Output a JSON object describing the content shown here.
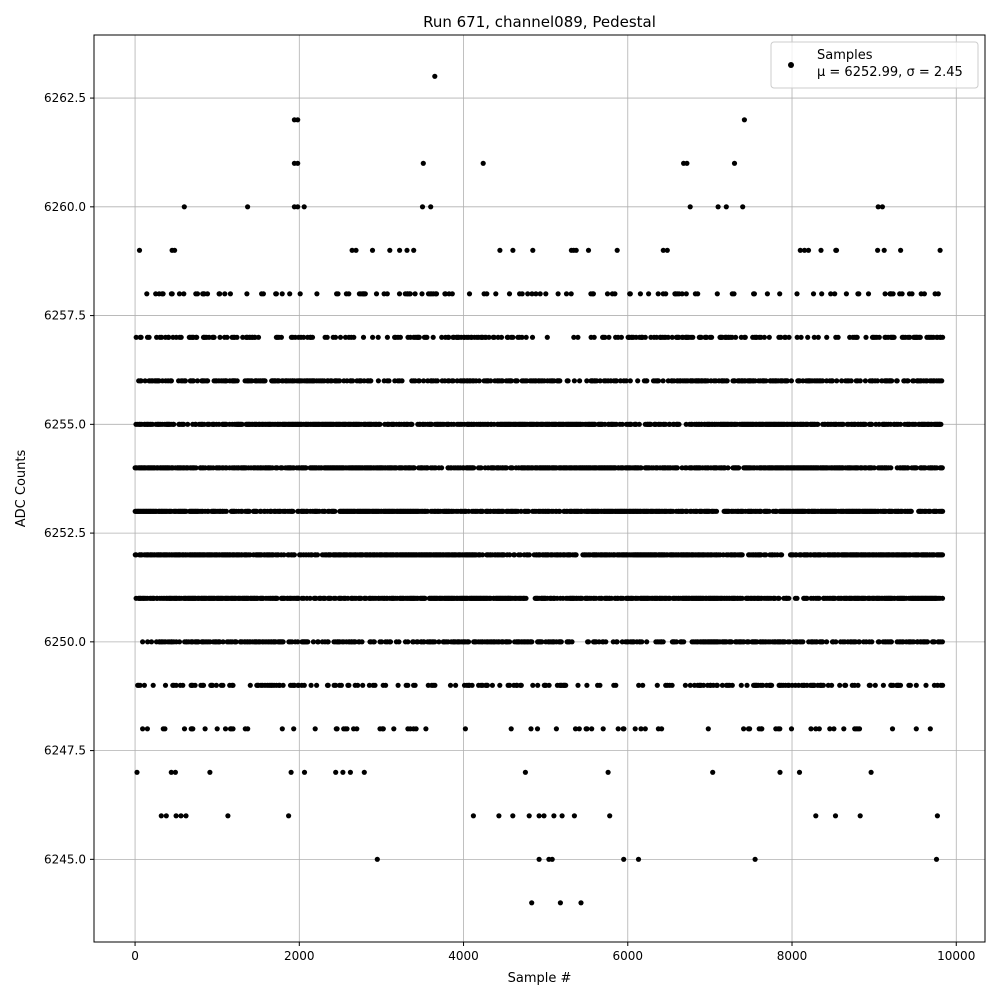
{
  "chart_data": {
    "type": "scatter",
    "title": "Run 671, channel089, Pedestal",
    "xlabel": "Sample #",
    "ylabel": "ADC Counts",
    "xlim": [
      -500,
      10350
    ],
    "ylim": [
      6243.1,
      6263.95
    ],
    "x_ticks": [
      0,
      2000,
      4000,
      6000,
      8000,
      10000
    ],
    "x_tick_labels": [
      "0",
      "2000",
      "4000",
      "6000",
      "8000",
      "10000"
    ],
    "y_ticks": [
      6245.0,
      6247.5,
      6250.0,
      6252.5,
      6255.0,
      6257.5,
      6260.0,
      6262.5
    ],
    "y_tick_labels": [
      "6245.0",
      "6247.5",
      "6250.0",
      "6252.5",
      "6255.0",
      "6257.5",
      "6260.0",
      "6262.5"
    ],
    "grid": true,
    "legend_position": "top-right",
    "marker_color": "#000000",
    "series": [
      {
        "name": "Samples",
        "legend_stats": "μ = 6252.99, σ = 2.45",
        "x_range": [
          0,
          9830
        ],
        "sample_count": 9831,
        "value_levels": [
          6244,
          6245,
          6246,
          6247,
          6248,
          6249,
          6250,
          6251,
          6252,
          6253,
          6254,
          6255,
          6256,
          6257,
          6258,
          6259,
          6260,
          6261,
          6262,
          6263
        ],
        "points": [
          {
            "x": 3650,
            "y": 6263
          },
          {
            "x": 1940,
            "y": 6262
          },
          {
            "x": 1980,
            "y": 6262
          },
          {
            "x": 7420,
            "y": 6262
          },
          {
            "x": 1940,
            "y": 6261
          },
          {
            "x": 1980,
            "y": 6261
          },
          {
            "x": 3510,
            "y": 6261
          },
          {
            "x": 4240,
            "y": 6261
          },
          {
            "x": 6680,
            "y": 6261
          },
          {
            "x": 6720,
            "y": 6261
          },
          {
            "x": 7300,
            "y": 6261
          },
          {
            "x": 600,
            "y": 6260
          },
          {
            "x": 1370,
            "y": 6260
          },
          {
            "x": 1940,
            "y": 6260
          },
          {
            "x": 1980,
            "y": 6260
          },
          {
            "x": 2060,
            "y": 6260
          },
          {
            "x": 3500,
            "y": 6260
          },
          {
            "x": 3600,
            "y": 6260
          },
          {
            "x": 6760,
            "y": 6260
          },
          {
            "x": 7100,
            "y": 6260
          },
          {
            "x": 7200,
            "y": 6260
          },
          {
            "x": 7400,
            "y": 6260
          },
          {
            "x": 9050,
            "y": 6260
          },
          {
            "x": 9100,
            "y": 6260
          },
          {
            "x": 4830,
            "y": 6244
          },
          {
            "x": 5180,
            "y": 6244
          },
          {
            "x": 5430,
            "y": 6244
          },
          {
            "x": 2950,
            "y": 6245
          },
          {
            "x": 4920,
            "y": 6245
          },
          {
            "x": 5040,
            "y": 6245
          },
          {
            "x": 5080,
            "y": 6245
          },
          {
            "x": 5950,
            "y": 6245
          },
          {
            "x": 6130,
            "y": 6245
          },
          {
            "x": 7550,
            "y": 6245
          },
          {
            "x": 9760,
            "y": 6245
          },
          {
            "x": 320,
            "y": 6246
          },
          {
            "x": 380,
            "y": 6246
          },
          {
            "x": 500,
            "y": 6246
          },
          {
            "x": 560,
            "y": 6246
          },
          {
            "x": 620,
            "y": 6246
          },
          {
            "x": 1130,
            "y": 6246
          },
          {
            "x": 1870,
            "y": 6246
          },
          {
            "x": 4120,
            "y": 6246
          },
          {
            "x": 4430,
            "y": 6246
          },
          {
            "x": 4600,
            "y": 6246
          },
          {
            "x": 4800,
            "y": 6246
          },
          {
            "x": 4920,
            "y": 6246
          },
          {
            "x": 4980,
            "y": 6246
          },
          {
            "x": 5100,
            "y": 6246
          },
          {
            "x": 5200,
            "y": 6246
          },
          {
            "x": 5350,
            "y": 6246
          },
          {
            "x": 5780,
            "y": 6246
          },
          {
            "x": 8290,
            "y": 6246
          },
          {
            "x": 8530,
            "y": 6246
          },
          {
            "x": 8830,
            "y": 6246
          },
          {
            "x": 9770,
            "y": 6246
          }
        ]
      }
    ]
  }
}
